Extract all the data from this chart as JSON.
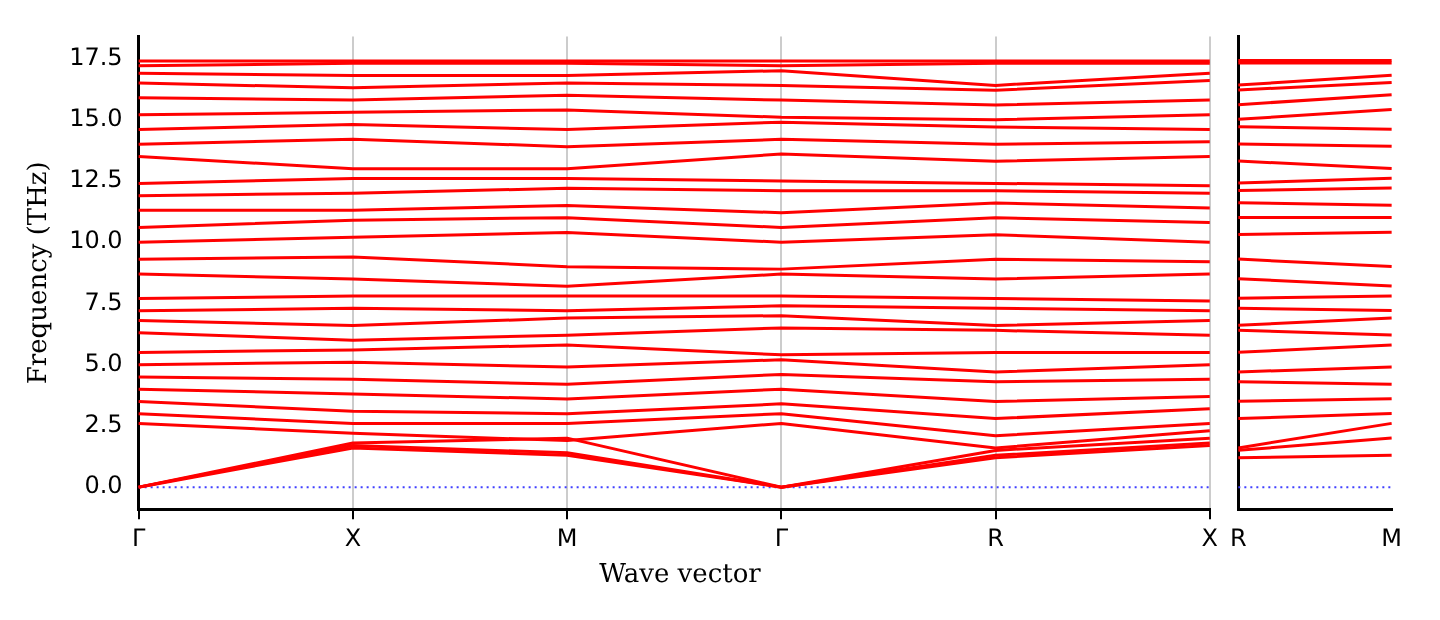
{
  "chart_data": [
    {
      "type": "line",
      "xlabel": "Wave vector",
      "ylabel": "Frequency (THz)",
      "categories": [
        "Γ",
        "X",
        "M",
        "Γ",
        "R",
        "X"
      ],
      "ylim": [
        -0.9,
        18.4
      ],
      "yticks": [
        {
          "value": 0,
          "label": "0.0"
        },
        {
          "value": 2.5,
          "label": "2.5"
        },
        {
          "value": 5,
          "label": "5.0"
        },
        {
          "value": 7.5,
          "label": "7.5"
        },
        {
          "value": 10,
          "label": "10.0"
        },
        {
          "value": 12.5,
          "label": "12.5"
        },
        {
          "value": 15,
          "label": "15.0"
        },
        {
          "value": 17.5,
          "label": "17.5"
        }
      ],
      "grid": "x",
      "legend": false,
      "marker": "none",
      "line_style": "solid",
      "ref_lines": [
        {
          "axis": "y",
          "value": 0,
          "color": "#4040ff",
          "line_style": "dotted"
        }
      ],
      "series": [
        {
          "color": "#ff0000",
          "values": [
            0,
            1.6,
            1.3,
            0,
            1.2,
            1.7
          ]
        },
        {
          "color": "#ff0000",
          "values": [
            0,
            1.7,
            1.4,
            0,
            1.3,
            1.8
          ]
        },
        {
          "color": "#ff0000",
          "values": [
            0,
            1.8,
            2.0,
            0,
            1.5,
            2.0
          ]
        },
        {
          "color": "#ff0000",
          "values": [
            2.6,
            2.2,
            1.9,
            2.6,
            1.6,
            2.3
          ]
        },
        {
          "color": "#ff0000",
          "values": [
            3.0,
            2.6,
            2.6,
            3.0,
            2.1,
            2.6
          ]
        },
        {
          "color": "#ff0000",
          "values": [
            3.5,
            3.1,
            3.0,
            3.4,
            2.8,
            3.2
          ]
        },
        {
          "color": "#ff0000",
          "values": [
            4.0,
            3.8,
            3.6,
            4.0,
            3.5,
            3.7
          ]
        },
        {
          "color": "#ff0000",
          "values": [
            4.5,
            4.4,
            4.2,
            4.6,
            4.3,
            4.4
          ]
        },
        {
          "color": "#ff0000",
          "values": [
            5.0,
            5.1,
            4.9,
            5.2,
            4.7,
            5.0
          ]
        },
        {
          "color": "#ff0000",
          "values": [
            5.5,
            5.6,
            5.8,
            5.4,
            5.5,
            5.5
          ]
        },
        {
          "color": "#ff0000",
          "values": [
            6.3,
            6.0,
            6.2,
            6.5,
            6.4,
            6.2
          ]
        },
        {
          "color": "#ff0000",
          "values": [
            6.8,
            6.6,
            6.9,
            7.0,
            6.6,
            6.8
          ]
        },
        {
          "color": "#ff0000",
          "values": [
            7.2,
            7.3,
            7.2,
            7.4,
            7.3,
            7.2
          ]
        },
        {
          "color": "#ff0000",
          "values": [
            7.7,
            7.8,
            7.8,
            7.8,
            7.7,
            7.6
          ]
        },
        {
          "color": "#ff0000",
          "values": [
            8.7,
            8.5,
            8.2,
            8.7,
            8.5,
            8.7
          ]
        },
        {
          "color": "#ff0000",
          "values": [
            9.3,
            9.4,
            9.0,
            8.9,
            9.3,
            9.2
          ]
        },
        {
          "color": "#ff0000",
          "values": [
            10.0,
            10.2,
            10.4,
            10.0,
            10.3,
            10.0
          ]
        },
        {
          "color": "#ff0000",
          "values": [
            10.6,
            10.9,
            11.0,
            10.6,
            11.0,
            10.8
          ]
        },
        {
          "color": "#ff0000",
          "values": [
            11.3,
            11.3,
            11.5,
            11.2,
            11.6,
            11.4
          ]
        },
        {
          "color": "#ff0000",
          "values": [
            11.9,
            12.0,
            12.2,
            12.1,
            12.1,
            12.0
          ]
        },
        {
          "color": "#ff0000",
          "values": [
            12.4,
            12.6,
            12.6,
            12.5,
            12.4,
            12.3
          ]
        },
        {
          "color": "#ff0000",
          "values": [
            13.5,
            13.0,
            13.0,
            13.6,
            13.3,
            13.5
          ]
        },
        {
          "color": "#ff0000",
          "values": [
            14.0,
            14.2,
            13.9,
            14.2,
            14.0,
            14.1
          ]
        },
        {
          "color": "#ff0000",
          "values": [
            14.6,
            14.8,
            14.6,
            14.9,
            14.7,
            14.6
          ]
        },
        {
          "color": "#ff0000",
          "values": [
            15.2,
            15.3,
            15.4,
            15.1,
            15.0,
            15.2
          ]
        },
        {
          "color": "#ff0000",
          "values": [
            15.9,
            15.8,
            16.0,
            15.8,
            15.6,
            15.8
          ]
        },
        {
          "color": "#ff0000",
          "values": [
            16.5,
            16.3,
            16.5,
            16.4,
            16.2,
            16.6
          ]
        },
        {
          "color": "#ff0000",
          "values": [
            16.9,
            16.8,
            16.8,
            17.0,
            16.4,
            16.9
          ]
        },
        {
          "color": "#ff0000",
          "values": [
            17.2,
            17.3,
            17.3,
            17.2,
            17.3,
            17.3
          ]
        },
        {
          "color": "#ff0000",
          "values": [
            17.4,
            17.4,
            17.4,
            17.4,
            17.4,
            17.4
          ]
        }
      ]
    },
    {
      "type": "line",
      "categories": [
        "R",
        "M"
      ],
      "ylim": [
        -0.9,
        18.4
      ],
      "yticks": [
        {
          "value": 0,
          "label": null
        },
        {
          "value": 2.5,
          "label": null
        },
        {
          "value": 5,
          "label": null
        },
        {
          "value": 7.5,
          "label": null
        },
        {
          "value": 10,
          "label": null
        },
        {
          "value": 12.5,
          "label": null
        },
        {
          "value": 15,
          "label": null
        },
        {
          "value": 17.5,
          "label": null
        }
      ],
      "tick_labels": "x",
      "legend": false,
      "marker": "none",
      "line_style": "solid",
      "ref_lines": [
        {
          "axis": "y",
          "value": 0,
          "color": "#4040ff",
          "line_style": "dotted"
        }
      ],
      "series": [
        {
          "color": "#ff0000",
          "values": [
            1.2,
            1.3
          ]
        },
        {
          "color": "#ff0000",
          "values": [
            1.5,
            2.0
          ]
        },
        {
          "color": "#ff0000",
          "values": [
            1.6,
            2.6
          ]
        },
        {
          "color": "#ff0000",
          "values": [
            2.8,
            3.0
          ]
        },
        {
          "color": "#ff0000",
          "values": [
            3.5,
            3.6
          ]
        },
        {
          "color": "#ff0000",
          "values": [
            4.3,
            4.2
          ]
        },
        {
          "color": "#ff0000",
          "values": [
            4.7,
            4.9
          ]
        },
        {
          "color": "#ff0000",
          "values": [
            5.5,
            5.8
          ]
        },
        {
          "color": "#ff0000",
          "values": [
            6.4,
            6.2
          ]
        },
        {
          "color": "#ff0000",
          "values": [
            6.6,
            6.9
          ]
        },
        {
          "color": "#ff0000",
          "values": [
            7.3,
            7.2
          ]
        },
        {
          "color": "#ff0000",
          "values": [
            7.7,
            7.8
          ]
        },
        {
          "color": "#ff0000",
          "values": [
            8.5,
            8.2
          ]
        },
        {
          "color": "#ff0000",
          "values": [
            9.3,
            9.0
          ]
        },
        {
          "color": "#ff0000",
          "values": [
            10.3,
            10.4
          ]
        },
        {
          "color": "#ff0000",
          "values": [
            11.0,
            11.0
          ]
        },
        {
          "color": "#ff0000",
          "values": [
            11.6,
            11.5
          ]
        },
        {
          "color": "#ff0000",
          "values": [
            12.1,
            12.2
          ]
        },
        {
          "color": "#ff0000",
          "values": [
            12.4,
            12.6
          ]
        },
        {
          "color": "#ff0000",
          "values": [
            13.3,
            13.0
          ]
        },
        {
          "color": "#ff0000",
          "values": [
            14.0,
            13.9
          ]
        },
        {
          "color": "#ff0000",
          "values": [
            14.7,
            14.6
          ]
        },
        {
          "color": "#ff0000",
          "values": [
            15.0,
            15.4
          ]
        },
        {
          "color": "#ff0000",
          "values": [
            15.6,
            16.0
          ]
        },
        {
          "color": "#ff0000",
          "values": [
            16.2,
            16.5
          ]
        },
        {
          "color": "#ff0000",
          "values": [
            16.4,
            16.8
          ]
        },
        {
          "color": "#ff0000",
          "values": [
            17.3,
            17.3
          ]
        },
        {
          "color": "#ff0000",
          "values": [
            17.4,
            17.4
          ]
        }
      ]
    }
  ]
}
